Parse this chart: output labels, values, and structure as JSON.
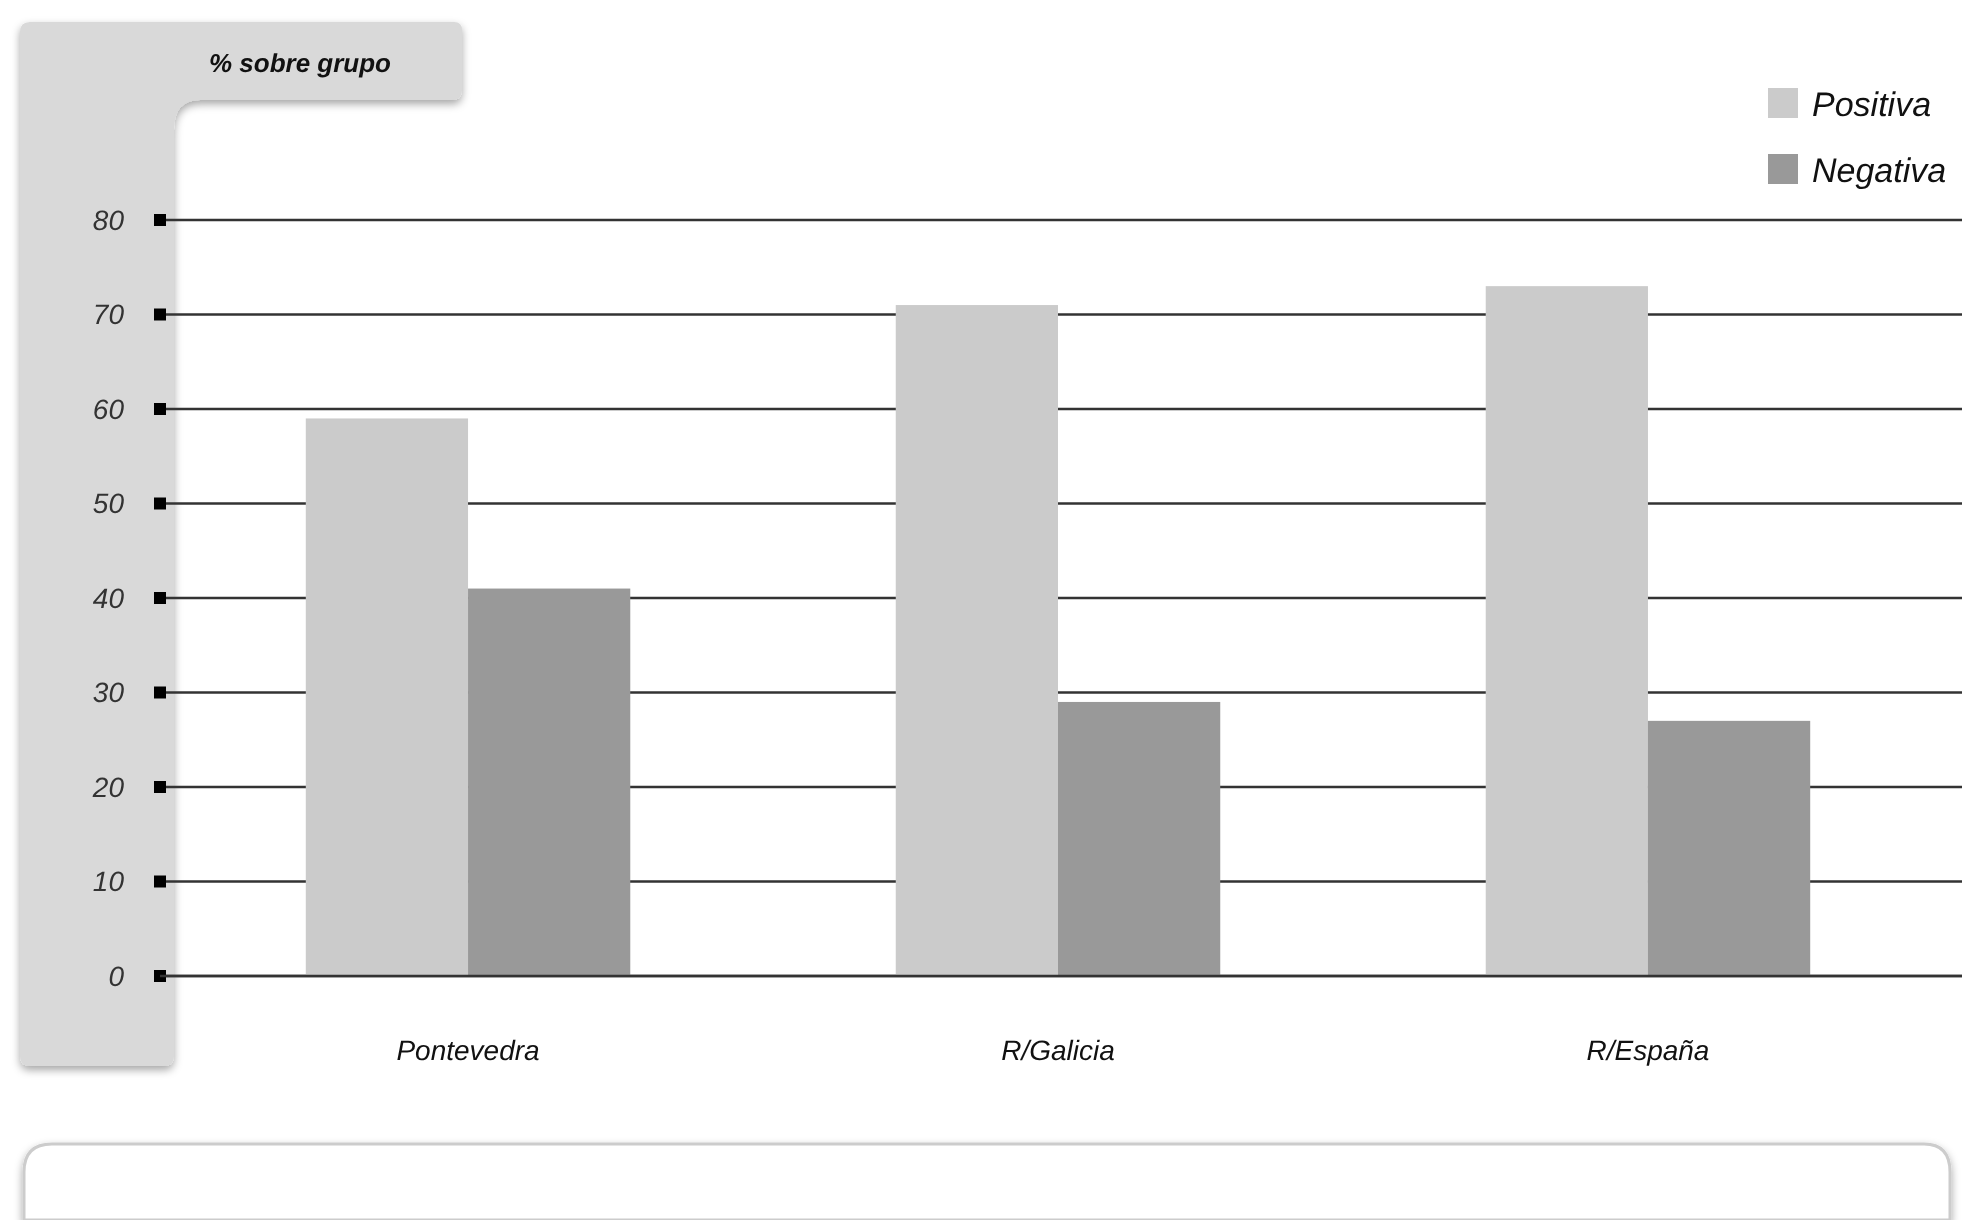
{
  "chart_data": {
    "type": "bar",
    "ylabel": "% sobre grupo",
    "categories": [
      "Pontevedra",
      "R/Galicia",
      "R/España"
    ],
    "series": [
      {
        "name": "Positiva",
        "color": "#cbcbcb",
        "values": [
          59,
          71,
          73
        ]
      },
      {
        "name": "Negativa",
        "color": "#999999",
        "values": [
          41,
          29,
          27
        ]
      }
    ],
    "ylim": [
      0,
      80
    ],
    "yticks": [
      0,
      10,
      20,
      30,
      40,
      50,
      60,
      70,
      80
    ],
    "grid": "y",
    "legend": "top right"
  }
}
